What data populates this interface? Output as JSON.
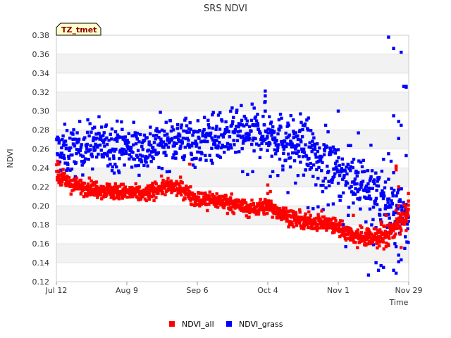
{
  "chart_data": {
    "type": "scatter",
    "title": "SRS NDVI",
    "xlabel": "Time",
    "ylabel": "NDVI",
    "badge": "TZ_tmet",
    "x_range_days": [
      0,
      140
    ],
    "x_ticks": [
      {
        "day": 0,
        "label": "Jul 12"
      },
      {
        "day": 28,
        "label": "Aug 9"
      },
      {
        "day": 56,
        "label": "Sep 6"
      },
      {
        "day": 84,
        "label": "Oct 4"
      },
      {
        "day": 112,
        "label": "Nov 1"
      },
      {
        "day": 140,
        "label": "Nov 29"
      }
    ],
    "ylim": [
      0.12,
      0.38
    ],
    "y_ticks": [
      0.12,
      0.14,
      0.16,
      0.18,
      0.2,
      0.22,
      0.24,
      0.26,
      0.28,
      0.3,
      0.32,
      0.34,
      0.36,
      0.38
    ],
    "legend_position": "bottom-center",
    "series": [
      {
        "name": "NDVI_all",
        "color": "#ff0000",
        "trend": [
          [
            0,
            0.232
          ],
          [
            7,
            0.221
          ],
          [
            14,
            0.219
          ],
          [
            21,
            0.216
          ],
          [
            28,
            0.214
          ],
          [
            35,
            0.212
          ],
          [
            42,
            0.22
          ],
          [
            49,
            0.219
          ],
          [
            56,
            0.207
          ],
          [
            63,
            0.206
          ],
          [
            70,
            0.203
          ],
          [
            77,
            0.196
          ],
          [
            84,
            0.2
          ],
          [
            91,
            0.19
          ],
          [
            98,
            0.183
          ],
          [
            105,
            0.183
          ],
          [
            112,
            0.177
          ],
          [
            119,
            0.168
          ],
          [
            126,
            0.166
          ],
          [
            131,
            0.168
          ],
          [
            136,
            0.18
          ],
          [
            140,
            0.195
          ]
        ],
        "noise": 0.006,
        "points_per_day": 9,
        "outliers": [
          [
            0.5,
            0.247
          ],
          [
            1,
            0.244
          ],
          [
            44,
            0.225
          ],
          [
            50,
            0.216
          ],
          [
            53,
            0.244
          ],
          [
            60,
            0.195
          ],
          [
            68,
            0.192
          ],
          [
            84,
            0.222
          ],
          [
            84,
            0.213
          ],
          [
            85,
            0.215
          ],
          [
            110,
            0.187
          ],
          [
            116,
            0.171
          ],
          [
            118,
            0.19
          ],
          [
            124,
            0.175
          ],
          [
            127,
            0.164
          ],
          [
            129,
            0.183
          ],
          [
            131,
            0.19
          ],
          [
            131,
            0.157
          ],
          [
            132,
            0.158
          ],
          [
            133,
            0.18
          ],
          [
            134,
            0.178
          ],
          [
            135,
            0.195
          ],
          [
            135,
            0.242
          ],
          [
            135,
            0.241
          ],
          [
            135,
            0.238
          ],
          [
            136,
            0.22
          ],
          [
            136,
            0.2
          ],
          [
            136,
            0.192
          ],
          [
            137,
            0.185
          ],
          [
            137,
            0.174
          ],
          [
            137,
            0.156
          ],
          [
            139,
            0.174
          ],
          [
            139,
            0.188
          ],
          [
            140,
            0.213
          ],
          [
            140,
            0.205
          ]
        ]
      },
      {
        "name": "NDVI_grass",
        "color": "#0000ff",
        "trend": [
          [
            0,
            0.257
          ],
          [
            7,
            0.258
          ],
          [
            14,
            0.265
          ],
          [
            21,
            0.264
          ],
          [
            28,
            0.262
          ],
          [
            35,
            0.26
          ],
          [
            42,
            0.266
          ],
          [
            49,
            0.271
          ],
          [
            56,
            0.267
          ],
          [
            63,
            0.271
          ],
          [
            70,
            0.274
          ],
          [
            77,
            0.276
          ],
          [
            84,
            0.278
          ],
          [
            91,
            0.27
          ],
          [
            98,
            0.262
          ],
          [
            105,
            0.252
          ],
          [
            112,
            0.24
          ],
          [
            119,
            0.225
          ],
          [
            126,
            0.216
          ],
          [
            131,
            0.206
          ],
          [
            136,
            0.194
          ],
          [
            140,
            0.186
          ]
        ],
        "noise": 0.018,
        "points_per_day": 7,
        "outliers": [
          [
            83,
            0.321
          ],
          [
            83,
            0.316
          ],
          [
            83,
            0.31
          ],
          [
            83,
            0.3
          ],
          [
            83,
            0.3
          ],
          [
            62,
            0.296
          ],
          [
            97,
            0.297
          ],
          [
            112,
            0.3
          ],
          [
            120,
            0.277
          ],
          [
            132,
            0.378
          ],
          [
            134,
            0.366
          ],
          [
            137,
            0.362
          ],
          [
            138,
            0.326
          ],
          [
            139,
            0.326
          ],
          [
            139,
            0.325
          ],
          [
            125,
            0.264
          ],
          [
            124,
            0.127
          ],
          [
            128,
            0.132
          ],
          [
            130,
            0.135
          ],
          [
            134,
            0.132
          ],
          [
            135,
            0.129
          ],
          [
            127,
            0.14
          ],
          [
            129,
            0.137
          ],
          [
            136,
            0.148
          ],
          [
            136,
            0.141
          ],
          [
            137,
            0.143
          ],
          [
            135,
            0.157
          ],
          [
            138,
            0.191
          ],
          [
            139,
            0.189
          ],
          [
            140,
            0.188
          ],
          [
            137,
            0.285
          ],
          [
            136,
            0.271
          ],
          [
            139,
            0.253
          ],
          [
            132,
            0.228
          ],
          [
            134,
            0.235
          ],
          [
            130,
            0.249
          ],
          [
            133,
            0.247
          ],
          [
            123,
            0.183
          ],
          [
            127,
            0.177
          ],
          [
            125,
            0.17
          ],
          [
            115,
            0.157
          ],
          [
            118,
            0.203
          ],
          [
            119,
            0.235
          ],
          [
            121,
            0.246
          ],
          [
            126,
            0.159
          ],
          [
            133,
            0.172
          ],
          [
            132,
            0.255
          ],
          [
            134,
            0.295
          ],
          [
            136,
            0.289
          ],
          [
            85,
            0.231
          ],
          [
            86,
            0.236
          ],
          [
            88,
            0.232
          ],
          [
            90,
            0.238
          ],
          [
            92,
            0.214
          ],
          [
            95,
            0.224
          ],
          [
            100,
            0.198
          ],
          [
            102,
            0.197
          ],
          [
            104,
            0.199
          ],
          [
            106,
            0.196
          ],
          [
            108,
            0.201
          ],
          [
            110,
            0.202
          ],
          [
            95,
            0.26
          ],
          [
            98,
            0.285
          ],
          [
            100,
            0.28
          ],
          [
            105,
            0.25
          ],
          [
            107,
            0.285
          ],
          [
            110,
            0.262
          ],
          [
            113,
            0.21
          ],
          [
            116,
            0.19
          ],
          [
            114,
            0.18
          ],
          [
            80,
            0.287
          ],
          [
            74,
            0.236
          ],
          [
            76,
            0.233
          ],
          [
            78,
            0.236
          ],
          [
            90,
            0.242
          ],
          [
            93,
            0.241
          ],
          [
            96,
            0.232
          ],
          [
            99,
            0.238
          ],
          [
            102,
            0.231
          ]
        ]
      }
    ]
  }
}
